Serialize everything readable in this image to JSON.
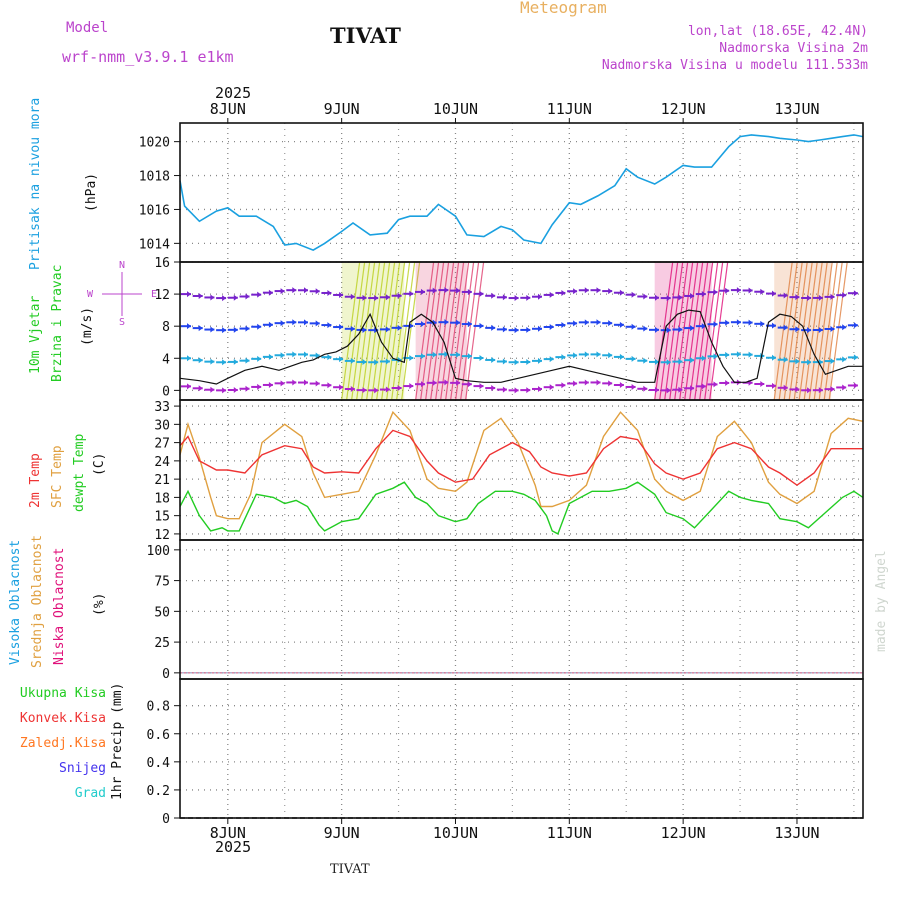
{
  "header": {
    "model_label": "Model",
    "model_name": "wrf-nmm_v3.9.1 e1km",
    "station": "TIVAT",
    "product": "Meteogram",
    "coords": "lon,lat (18.65E, 42.4N)",
    "elev": "Nadmorska Visina 2m",
    "elev_model": "Nadmorska Visina u modelu 111.533m",
    "year": "2025",
    "footer_station": "TIVAT",
    "credit": "made by Angel"
  },
  "colors": {
    "pressure": "#1aa0e0",
    "temp2m": "#ee3333",
    "sfc_temp": "#e0a040",
    "dewpt": "#22cc22",
    "header_purple": "#bb44cc",
    "meteogram_title": "#e8b060",
    "grid": "#888888"
  },
  "chart_data": [
    {
      "type": "line",
      "panel": "pressure",
      "ylabels": [
        "Pritisak na nivou mora",
        "(hPa)"
      ],
      "ylim": [
        1012.9,
        1021.1
      ],
      "yticks": [
        "1014",
        "1016",
        "1018",
        "1020"
      ],
      "x_unit": "day offset from 8JUN 00:00",
      "x_ticks": [
        "8JUN",
        "9JUN",
        "10JUN",
        "11JUN",
        "12JUN",
        "13JUN"
      ],
      "xlim": [
        -0.42,
        5.58
      ],
      "grid": true,
      "series": [
        {
          "x": [
            -0.42,
            -0.38,
            -0.25,
            -0.1,
            0.0,
            0.1,
            0.25,
            0.4,
            0.5,
            0.6,
            0.75,
            0.85,
            1.0,
            1.1,
            1.25,
            1.4,
            1.5,
            1.6,
            1.75,
            1.85,
            2.0,
            2.1,
            2.25,
            2.4,
            2.5,
            2.6,
            2.75,
            2.85,
            3.0,
            3.1,
            3.25,
            3.4,
            3.5,
            3.6,
            3.75,
            3.85,
            4.0,
            4.1,
            4.25,
            4.4,
            4.5,
            4.6,
            4.75,
            4.85,
            5.0,
            5.1,
            5.2,
            5.3,
            5.4,
            5.5,
            5.58
          ],
          "y": [
            1017.7,
            1016.2,
            1015.3,
            1015.9,
            1016.1,
            1015.6,
            1015.6,
            1015.0,
            1013.9,
            1014.0,
            1013.6,
            1014.0,
            1014.7,
            1015.2,
            1014.5,
            1014.6,
            1015.4,
            1015.6,
            1015.6,
            1016.3,
            1015.6,
            1014.5,
            1014.4,
            1015.0,
            1014.8,
            1014.2,
            1014.0,
            1015.1,
            1016.4,
            1016.3,
            1016.8,
            1017.4,
            1018.4,
            1017.9,
            1017.5,
            1017.9,
            1018.6,
            1018.5,
            1018.5,
            1019.7,
            1020.3,
            1020.4,
            1020.3,
            1020.2,
            1020.1,
            1020.0,
            1020.1,
            1020.2,
            1020.3,
            1020.4,
            1020.3
          ]
        }
      ]
    },
    {
      "type": "line",
      "panel": "wind",
      "ylabels": [
        "10m Vjetar",
        "Brzina i Pravac",
        "(m/s)"
      ],
      "direction_legend": [
        "N",
        "W",
        "E",
        "S"
      ],
      "ylim": [
        -1.2,
        16
      ],
      "yticks": [
        "0",
        "4",
        "8",
        "12",
        "16"
      ],
      "x_ticks": [
        "8JUN",
        "9JUN",
        "10JUN",
        "11JUN",
        "12JUN",
        "13JUN"
      ],
      "grid": true,
      "series": [
        {
          "x": [
            -0.42,
            -0.25,
            -0.1,
            0.0,
            0.15,
            0.3,
            0.45,
            0.55,
            0.65,
            0.75,
            0.85,
            0.95,
            1.05,
            1.15,
            1.25,
            1.35,
            1.45,
            1.55,
            1.6,
            1.7,
            1.8,
            1.9,
            2.0,
            2.1,
            2.25,
            2.4,
            2.55,
            2.7,
            2.85,
            3.0,
            3.15,
            3.3,
            3.45,
            3.6,
            3.75,
            3.85,
            3.95,
            4.05,
            4.15,
            4.25,
            4.35,
            4.45,
            4.55,
            4.65,
            4.75,
            4.85,
            4.95,
            5.05,
            5.15,
            5.25,
            5.35,
            5.45,
            5.58
          ],
          "y": [
            1.5,
            1.2,
            0.8,
            1.5,
            2.5,
            3.0,
            2.5,
            3.0,
            3.5,
            3.8,
            4.5,
            4.8,
            5.5,
            7.0,
            9.5,
            6.0,
            4.0,
            3.5,
            8.5,
            9.5,
            8.5,
            6.0,
            1.5,
            1.2,
            1.0,
            1.0,
            1.5,
            2.0,
            2.5,
            3.0,
            2.5,
            2.0,
            1.5,
            1.0,
            1.0,
            8.0,
            9.5,
            10.0,
            9.8,
            6.0,
            3.0,
            1.0,
            1.0,
            1.5,
            8.5,
            9.5,
            9.2,
            8.0,
            4.5,
            2.0,
            2.5,
            3.0,
            3.0
          ]
        }
      ]
    },
    {
      "type": "line",
      "panel": "temperature",
      "ylabels": [
        "2m Temp",
        "SFC Temp",
        "dewpt Temp",
        "(C)"
      ],
      "ylim": [
        11,
        34
      ],
      "yticks": [
        "12",
        "15",
        "18",
        "21",
        "24",
        "27",
        "30",
        "33"
      ],
      "x_ticks": [
        "8JUN",
        "9JUN",
        "10JUN",
        "11JUN",
        "12JUN",
        "13JUN"
      ],
      "grid": true,
      "series": [
        {
          "name": "2m Temp",
          "x": [
            -0.42,
            -0.35,
            -0.25,
            -0.1,
            0.0,
            0.15,
            0.3,
            0.5,
            0.65,
            0.75,
            0.85,
            1.0,
            1.15,
            1.3,
            1.45,
            1.6,
            1.75,
            1.85,
            2.0,
            2.15,
            2.3,
            2.5,
            2.65,
            2.75,
            2.85,
            3.0,
            3.15,
            3.3,
            3.45,
            3.6,
            3.75,
            3.85,
            4.0,
            4.15,
            4.3,
            4.45,
            4.6,
            4.75,
            4.85,
            5.0,
            5.15,
            5.3,
            5.45,
            5.58
          ],
          "y": [
            26.5,
            28.0,
            24.0,
            22.5,
            22.5,
            22.0,
            25.0,
            26.5,
            26.0,
            23.0,
            22.0,
            22.2,
            22.0,
            26.0,
            29.0,
            28.0,
            24.0,
            22.0,
            20.5,
            21.0,
            25.0,
            27.0,
            25.5,
            23.0,
            22.0,
            21.5,
            22.0,
            26.0,
            28.0,
            27.5,
            23.5,
            22.0,
            21.0,
            22.0,
            26.0,
            27.0,
            26.0,
            23.0,
            22.0,
            20.0,
            22.0,
            26.0,
            26.0,
            26.0
          ]
        },
        {
          "name": "SFC Temp",
          "x": [
            -0.42,
            -0.35,
            -0.25,
            -0.15,
            -0.1,
            0.0,
            0.1,
            0.2,
            0.3,
            0.5,
            0.65,
            0.75,
            0.85,
            1.0,
            1.15,
            1.3,
            1.45,
            1.6,
            1.75,
            1.85,
            2.0,
            2.1,
            2.25,
            2.4,
            2.55,
            2.7,
            2.75,
            2.85,
            3.0,
            3.15,
            3.3,
            3.45,
            3.6,
            3.75,
            3.85,
            4.0,
            4.15,
            4.3,
            4.45,
            4.6,
            4.75,
            4.85,
            5.0,
            5.15,
            5.3,
            5.45,
            5.58
          ],
          "y": [
            25.0,
            30.0,
            24.5,
            18.0,
            15.0,
            14.5,
            14.5,
            18.5,
            27.0,
            30.0,
            28.0,
            22.0,
            18.0,
            18.5,
            19.0,
            25.0,
            32.0,
            29.0,
            21.0,
            19.5,
            19.0,
            20.5,
            29.0,
            31.0,
            27.0,
            20.0,
            16.5,
            16.5,
            17.5,
            20.0,
            28.0,
            32.0,
            29.0,
            21.0,
            19.0,
            17.5,
            19.0,
            28.0,
            30.5,
            27.0,
            20.5,
            18.5,
            17.0,
            19.0,
            28.5,
            31.0,
            30.5
          ]
        },
        {
          "name": "dewpt Temp",
          "x": [
            -0.42,
            -0.35,
            -0.25,
            -0.15,
            -0.05,
            0.0,
            0.1,
            0.25,
            0.4,
            0.5,
            0.6,
            0.7,
            0.8,
            0.85,
            0.95,
            1.0,
            1.15,
            1.3,
            1.45,
            1.55,
            1.65,
            1.75,
            1.85,
            2.0,
            2.1,
            2.2,
            2.35,
            2.5,
            2.6,
            2.7,
            2.8,
            2.85,
            2.9,
            3.0,
            3.2,
            3.35,
            3.5,
            3.6,
            3.75,
            3.85,
            4.0,
            4.1,
            4.25,
            4.4,
            4.5,
            4.6,
            4.75,
            4.85,
            5.0,
            5.1,
            5.25,
            5.4,
            5.5,
            5.58
          ],
          "y": [
            16.5,
            19.0,
            15.0,
            12.5,
            13.0,
            12.5,
            12.5,
            18.5,
            18.0,
            17.0,
            17.5,
            16.5,
            13.5,
            12.5,
            13.5,
            14.0,
            14.5,
            18.5,
            19.5,
            20.5,
            18.0,
            17.0,
            15.0,
            14.0,
            14.5,
            17.0,
            19.0,
            19.0,
            18.5,
            17.5,
            15.0,
            12.5,
            12.0,
            17.0,
            19.0,
            19.0,
            19.5,
            20.5,
            18.5,
            15.5,
            14.5,
            13.0,
            16.0,
            19.0,
            18.0,
            17.5,
            17.0,
            14.5,
            14.0,
            13.0,
            15.5,
            18.0,
            19.0,
            18.0
          ]
        }
      ]
    },
    {
      "type": "line",
      "panel": "cloud",
      "ylabels": [
        "Visoka Oblacnost",
        "Srednja Oblacnost",
        "Niska Oblacnost",
        "(%)"
      ],
      "ylim": [
        -5,
        108
      ],
      "yticks": [
        "0",
        "25",
        "50",
        "75",
        "100"
      ],
      "x_ticks": [
        "8JUN",
        "9JUN",
        "10JUN",
        "11JUN",
        "12JUN",
        "13JUN"
      ],
      "grid": true,
      "series": [
        {
          "name": "Visoka Oblacnost",
          "x": [
            -0.42,
            5.58
          ],
          "y": [
            0,
            0
          ]
        },
        {
          "name": "Srednja Oblacnost",
          "x": [
            -0.42,
            5.58
          ],
          "y": [
            0,
            0
          ]
        },
        {
          "name": "Niska Oblacnost",
          "x": [
            -0.42,
            5.58
          ],
          "y": [
            0,
            0
          ]
        }
      ]
    },
    {
      "type": "bar",
      "panel": "precip",
      "ylabels": [
        "Ukupna Kisa",
        "Konvek.Kisa",
        "Zaledj.Kisa",
        "Snijeg",
        "Grad",
        "1hr Precip (mm)"
      ],
      "ylim": [
        0,
        0.99
      ],
      "yticks": [
        "0",
        "0.2",
        "0.4",
        "0.6",
        "0.8"
      ],
      "x_ticks": [
        "8JUN",
        "9JUN",
        "10JUN",
        "11JUN",
        "12JUN",
        "13JUN"
      ],
      "grid": true,
      "series": [
        {
          "name": "Ukupna Kisa",
          "x": [
            -0.42,
            5.58
          ],
          "y": [
            0,
            0
          ]
        }
      ]
    }
  ]
}
